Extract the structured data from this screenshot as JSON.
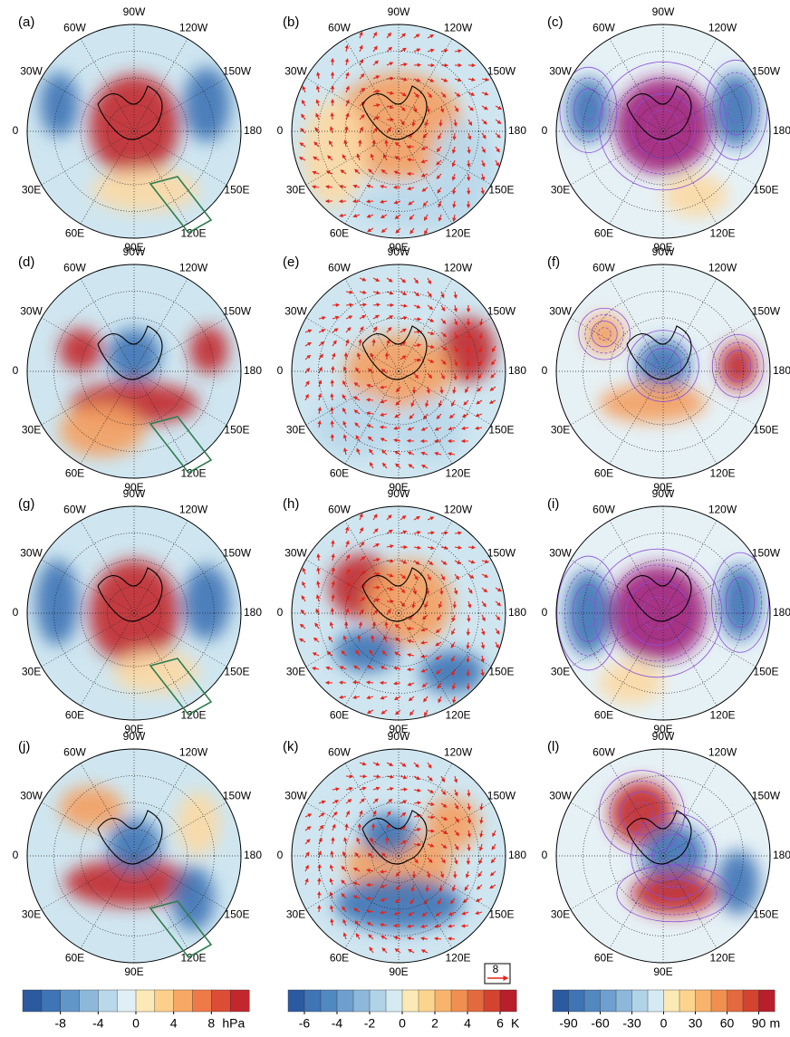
{
  "panels": [
    {
      "label": "(a)"
    },
    {
      "label": "(b)"
    },
    {
      "label": "(c)"
    },
    {
      "label": "(d)"
    },
    {
      "label": "(e)"
    },
    {
      "label": "(f)"
    },
    {
      "label": "(g)"
    },
    {
      "label": "(h)"
    },
    {
      "label": "(i)"
    },
    {
      "label": "(j)"
    },
    {
      "label": "(k)"
    },
    {
      "label": "(l)"
    }
  ],
  "longitude_labels": [
    "90W",
    "120W",
    "150W",
    "180",
    "150E",
    "120E",
    "90E",
    "60E",
    "30E",
    "0",
    "30W",
    "60W"
  ],
  "vector_scale": "8",
  "colorbars": [
    {
      "ticks": [
        -8,
        -4,
        0,
        4,
        8
      ],
      "unit": "hPa",
      "lim": [
        -12,
        12
      ],
      "colors": [
        "#2c5aa0",
        "#3f74b5",
        "#6196c8",
        "#8db8da",
        "#b9d8ea",
        "#e0eff5",
        "#fbe9b7",
        "#fcd08a",
        "#f7a864",
        "#ee7a48",
        "#dc4d35",
        "#c1272d"
      ]
    },
    {
      "ticks": [
        -6,
        -4,
        -2,
        0,
        2,
        4,
        6
      ],
      "unit": "K",
      "lim": [
        -7,
        7
      ],
      "colors": [
        "#2c5aa0",
        "#3f74b5",
        "#5288c0",
        "#6f9fcf",
        "#8db8da",
        "#b1d3e8",
        "#d6eaf3",
        "#fbeab5",
        "#fdd48e",
        "#f9b36b",
        "#f18f51",
        "#e36a3f",
        "#d3432f",
        "#b81f2a"
      ]
    },
    {
      "ticks": [
        -90,
        -60,
        -30,
        0,
        30,
        60,
        90
      ],
      "unit": "m",
      "lim": [
        -105,
        105
      ],
      "colors": [
        "#2c5aa0",
        "#3f74b5",
        "#5288c0",
        "#6f9fcf",
        "#8db8da",
        "#b1d3e8",
        "#d6eaf3",
        "#fbeab5",
        "#fdd48e",
        "#f9b36b",
        "#f18f51",
        "#e36a3f",
        "#d3432f",
        "#b81f2a"
      ]
    }
  ]
}
